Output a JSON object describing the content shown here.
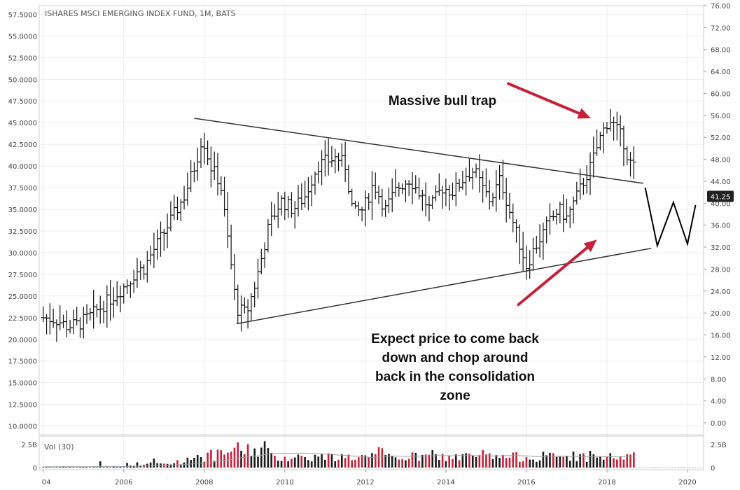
{
  "chart_data": {
    "type": "ohlc",
    "title": "ISHARES MSCI EMERGING INDEX FUND, 1M, BATS",
    "left_axis": {
      "range": [
        9.0,
        58.5
      ],
      "ticks": [
        "10.0000",
        "12.5000",
        "15.0000",
        "17.5000",
        "20.0000",
        "22.5000",
        "25.0000",
        "27.5000",
        "30.0000",
        "32.5000",
        "35.0000",
        "37.5000",
        "40.0000",
        "42.5000",
        "45.0000",
        "47.5000",
        "50.0000",
        "52.5000",
        "55.0000",
        "57.5000"
      ],
      "tick_values": [
        10,
        12.5,
        15,
        17.5,
        20,
        22.5,
        25,
        27.5,
        30,
        32.5,
        35,
        37.5,
        40,
        42.5,
        45,
        47.5,
        50,
        52.5,
        55,
        57.5
      ]
    },
    "right_axis": {
      "ticks": [
        "0.00",
        "4.00",
        "8.00",
        "12.00",
        "16.00",
        "20.00",
        "24.00",
        "28.00",
        "32.00",
        "36.00",
        "40.00",
        "44.00",
        "48.00",
        "52.00",
        "56.00",
        "60.00",
        "64.00",
        "68.00",
        "72.00",
        "76.00"
      ],
      "tick_values": [
        0,
        4,
        8,
        12,
        16,
        20,
        24,
        28,
        32,
        36,
        40,
        44,
        48,
        52,
        56,
        60,
        64,
        68,
        72,
        76
      ],
      "last_value_label": "41.25",
      "last_value": 41.25
    },
    "x_axis": {
      "range": [
        2003.9,
        2020.4
      ],
      "ticks": [
        "04",
        "2006",
        "2008",
        "2010",
        "2012",
        "2014",
        "2016",
        "2018",
        "2020"
      ],
      "tick_values": [
        2004,
        2006,
        2008,
        2010,
        2012,
        2014,
        2016,
        2018,
        2020
      ]
    },
    "price_anchors": [
      [
        2004.0,
        22.5
      ],
      [
        2004.3,
        22.3
      ],
      [
        2004.6,
        21.5
      ],
      [
        2004.9,
        21.8
      ],
      [
        2005.2,
        22.8
      ],
      [
        2005.5,
        24.0
      ],
      [
        2005.8,
        25.2
      ],
      [
        2006.1,
        26.5
      ],
      [
        2006.3,
        27.8
      ],
      [
        2006.5,
        28.2
      ],
      [
        2006.7,
        30.0
      ],
      [
        2006.9,
        31.5
      ],
      [
        2007.2,
        34.0
      ],
      [
        2007.5,
        36.5
      ],
      [
        2007.8,
        40.5
      ],
      [
        2007.95,
        43.5
      ],
      [
        2008.15,
        40.0
      ],
      [
        2008.4,
        38.0
      ],
      [
        2008.6,
        31.0
      ],
      [
        2008.8,
        23.5
      ],
      [
        2009.05,
        23.0
      ],
      [
        2009.3,
        27.0
      ],
      [
        2009.6,
        33.0
      ],
      [
        2009.9,
        36.0
      ],
      [
        2010.2,
        35.0
      ],
      [
        2010.5,
        36.5
      ],
      [
        2010.8,
        40.0
      ],
      [
        2011.0,
        40.5
      ],
      [
        2011.3,
        41.0
      ],
      [
        2011.5,
        40.0
      ],
      [
        2011.7,
        34.5
      ],
      [
        2011.95,
        35.0
      ],
      [
        2012.2,
        38.0
      ],
      [
        2012.5,
        35.0
      ],
      [
        2012.8,
        37.5
      ],
      [
        2013.1,
        38.5
      ],
      [
        2013.4,
        36.5
      ],
      [
        2013.6,
        35.0
      ],
      [
        2013.9,
        37.5
      ],
      [
        2014.2,
        37.0
      ],
      [
        2014.5,
        39.0
      ],
      [
        2014.7,
        39.5
      ],
      [
        2014.9,
        37.5
      ],
      [
        2015.1,
        36.0
      ],
      [
        2015.35,
        38.5
      ],
      [
        2015.6,
        34.5
      ],
      [
        2015.8,
        31.5
      ],
      [
        2016.0,
        28.5
      ],
      [
        2016.2,
        30.5
      ],
      [
        2016.5,
        33.0
      ],
      [
        2016.8,
        35.0
      ],
      [
        2017.0,
        34.0
      ],
      [
        2017.3,
        37.0
      ],
      [
        2017.6,
        40.0
      ],
      [
        2017.85,
        43.5
      ],
      [
        2018.05,
        45.5
      ],
      [
        2018.2,
        44.5
      ],
      [
        2018.4,
        43.0
      ],
      [
        2018.55,
        40.5
      ],
      [
        2018.7,
        39.8
      ]
    ],
    "trendlines": [
      {
        "from": [
          2007.75,
          45.5
        ],
        "to": [
          2018.9,
          38.0
        ]
      },
      {
        "from": [
          2008.8,
          21.8
        ],
        "to": [
          2019.1,
          30.5
        ]
      }
    ],
    "projection_path": [
      [
        2018.95,
        37.5
      ],
      [
        2019.25,
        30.8
      ],
      [
        2019.65,
        35.8
      ],
      [
        2020.0,
        31.0
      ],
      [
        2020.2,
        35.5
      ]
    ],
    "volume": {
      "label": "Vol (30)",
      "ticks": [
        "0",
        "2.5B"
      ],
      "tick_values": [
        0,
        2.5
      ],
      "range_max": 3.2,
      "ma_period": 30
    },
    "annotations": [
      {
        "text": "Massive bull trap",
        "arrow_from": [
          2015.55,
          49.5
        ],
        "arrow_to": [
          2017.6,
          45.5
        ]
      },
      {
        "text": [
          "Expect price to come back",
          "down and chop around",
          "back in the consolidation",
          "zone"
        ],
        "arrow_from": [
          2015.8,
          24.0
        ],
        "arrow_to": [
          2017.75,
          31.5
        ]
      }
    ],
    "colors": {
      "up_bar": "#111111",
      "down_bar": "#111111",
      "trendline": "#333333",
      "arrow": "#c4213a",
      "volume_up": "#1c1c1c",
      "volume_down": "#c4213a",
      "volume_ma": "#9aa0a6"
    },
    "grid": true
  }
}
